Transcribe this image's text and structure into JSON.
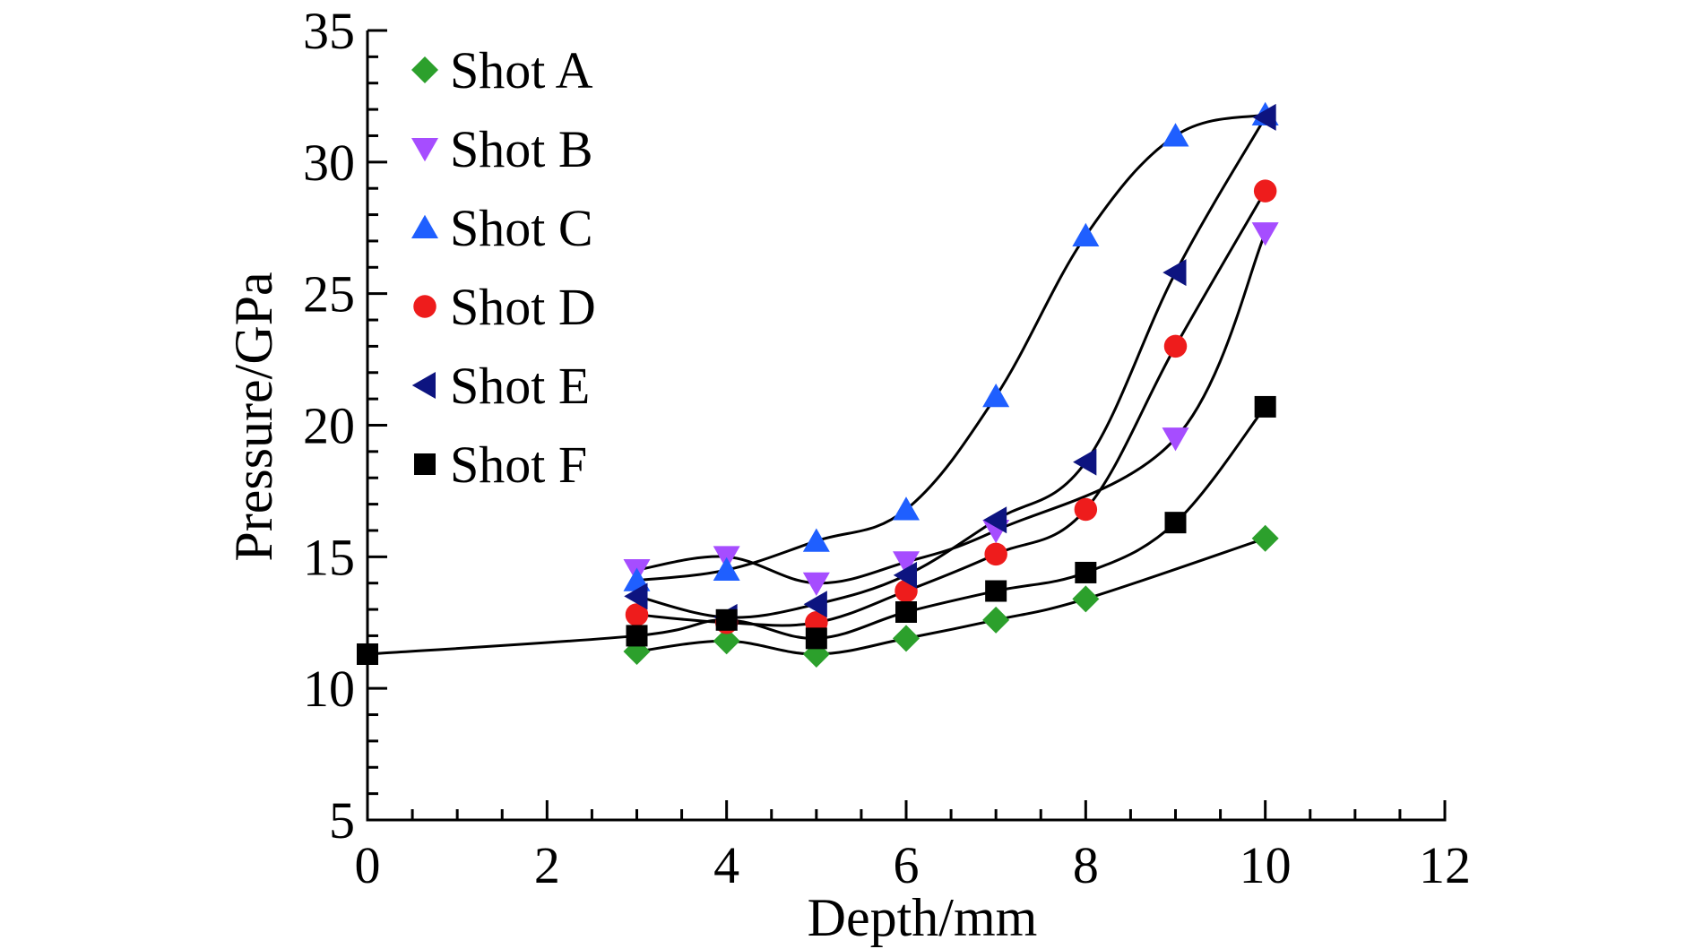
{
  "chart_data": {
    "type": "scatter",
    "xlabel": "Depth/mm",
    "ylabel": "Pressure/GPa",
    "xlim": [
      0,
      12
    ],
    "ylim": [
      5,
      35
    ],
    "x_ticks": [
      0,
      2,
      4,
      6,
      8,
      10,
      12
    ],
    "y_ticks": [
      5,
      10,
      15,
      20,
      25,
      30,
      35
    ],
    "grid": false,
    "legend_position": "top-left",
    "series": [
      {
        "name": "Shot A",
        "marker": "diamond",
        "color": "#2ca02c",
        "x": [
          3,
          4,
          5,
          6,
          7,
          8,
          10
        ],
        "y": [
          11.4,
          11.8,
          11.3,
          11.9,
          12.6,
          13.4,
          15.7
        ]
      },
      {
        "name": "Shot B",
        "marker": "triangle-down",
        "color": "#a64dff",
        "x": [
          3,
          4,
          5,
          6,
          7,
          9,
          10
        ],
        "y": [
          14.5,
          15.0,
          14.0,
          14.8,
          16.0,
          19.5,
          27.3
        ]
      },
      {
        "name": "Shot C",
        "marker": "triangle-up",
        "color": "#1f5fff",
        "x": [
          3,
          4,
          5,
          6,
          7,
          8,
          9,
          10
        ],
        "y": [
          14.1,
          14.5,
          15.6,
          16.8,
          21.1,
          27.2,
          31.0,
          31.8
        ]
      },
      {
        "name": "Shot D",
        "marker": "circle",
        "color": "#ee1c1c",
        "x": [
          3,
          4,
          5,
          6,
          7,
          8,
          9,
          10
        ],
        "y": [
          12.8,
          12.5,
          12.5,
          13.7,
          15.1,
          16.8,
          23.0,
          28.9
        ]
      },
      {
        "name": "Shot E",
        "marker": "triangle-left",
        "color": "#0d1480",
        "x": [
          3,
          4,
          5,
          6,
          7,
          8,
          9,
          10
        ],
        "y": [
          13.5,
          12.7,
          13.2,
          14.3,
          16.4,
          18.6,
          25.8,
          31.7
        ]
      },
      {
        "name": "Shot F",
        "marker": "square",
        "color": "#000000",
        "x": [
          0,
          3,
          4,
          5,
          6,
          7,
          8,
          9,
          10
        ],
        "y": [
          11.3,
          12.0,
          12.6,
          11.9,
          12.9,
          13.7,
          14.4,
          16.3,
          20.7
        ]
      }
    ]
  }
}
